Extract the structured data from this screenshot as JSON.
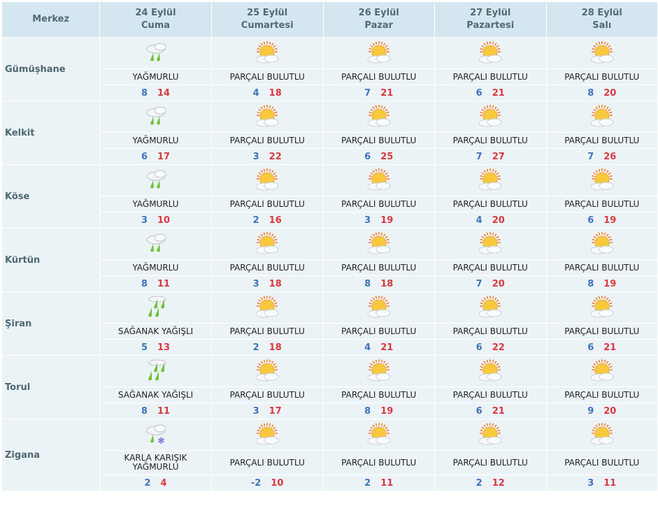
{
  "header": {
    "first": "Merkez",
    "days": [
      {
        "date": "24 Eylül",
        "weekday": "Cuma"
      },
      {
        "date": "25 Eylül",
        "weekday": "Cumartesi"
      },
      {
        "date": "26 Eylül",
        "weekday": "Pazar"
      },
      {
        "date": "27 Eylül",
        "weekday": "Pazartesi"
      },
      {
        "date": "28 Eylül",
        "weekday": "Salı"
      }
    ]
  },
  "colors": {
    "low": "#3e74ba",
    "high": "#d8393f",
    "header_bg": "#d4e7f1",
    "cell_bg": "#ecf3f7"
  },
  "rows": [
    {
      "city": "Gümüşhane",
      "days": [
        {
          "icon": "rain-icon",
          "cond": "YAĞMURLU",
          "lo": "8",
          "hi": "14"
        },
        {
          "icon": "partly-cloudy-icon",
          "cond": "PARÇALI BULUTLU",
          "lo": "4",
          "hi": "18"
        },
        {
          "icon": "partly-cloudy-icon",
          "cond": "PARÇALI BULUTLU",
          "lo": "7",
          "hi": "21"
        },
        {
          "icon": "partly-cloudy-icon",
          "cond": "PARÇALI BULUTLU",
          "lo": "6",
          "hi": "21"
        },
        {
          "icon": "partly-cloudy-icon",
          "cond": "PARÇALI BULUTLU",
          "lo": "8",
          "hi": "20"
        }
      ]
    },
    {
      "city": "Kelkit",
      "days": [
        {
          "icon": "rain-icon",
          "cond": "YAĞMURLU",
          "lo": "6",
          "hi": "17"
        },
        {
          "icon": "partly-cloudy-icon",
          "cond": "PARÇALI BULUTLU",
          "lo": "3",
          "hi": "22"
        },
        {
          "icon": "partly-cloudy-icon",
          "cond": "PARÇALI BULUTLU",
          "lo": "6",
          "hi": "25"
        },
        {
          "icon": "partly-cloudy-icon",
          "cond": "PARÇALI BULUTLU",
          "lo": "7",
          "hi": "27"
        },
        {
          "icon": "partly-cloudy-icon",
          "cond": "PARÇALI BULUTLU",
          "lo": "7",
          "hi": "26"
        }
      ]
    },
    {
      "city": "Köse",
      "days": [
        {
          "icon": "rain-icon",
          "cond": "YAĞMURLU",
          "lo": "3",
          "hi": "10"
        },
        {
          "icon": "partly-cloudy-icon",
          "cond": "PARÇALI BULUTLU",
          "lo": "2",
          "hi": "16"
        },
        {
          "icon": "partly-cloudy-icon",
          "cond": "PARÇALI BULUTLU",
          "lo": "3",
          "hi": "19"
        },
        {
          "icon": "partly-cloudy-icon",
          "cond": "PARÇALI BULUTLU",
          "lo": "4",
          "hi": "20"
        },
        {
          "icon": "partly-cloudy-icon",
          "cond": "PARÇALI BULUTLU",
          "lo": "6",
          "hi": "19"
        }
      ]
    },
    {
      "city": "Kürtün",
      "days": [
        {
          "icon": "rain-icon",
          "cond": "YAĞMURLU",
          "lo": "8",
          "hi": "11"
        },
        {
          "icon": "partly-cloudy-icon",
          "cond": "PARÇALI BULUTLU",
          "lo": "3",
          "hi": "18"
        },
        {
          "icon": "partly-cloudy-icon",
          "cond": "PARÇALI BULUTLU",
          "lo": "8",
          "hi": "18"
        },
        {
          "icon": "partly-cloudy-icon",
          "cond": "PARÇALI BULUTLU",
          "lo": "7",
          "hi": "20"
        },
        {
          "icon": "partly-cloudy-icon",
          "cond": "PARÇALI BULUTLU",
          "lo": "8",
          "hi": "19"
        }
      ]
    },
    {
      "city": "Şiran",
      "days": [
        {
          "icon": "heavy-rain-icon",
          "cond": "SAĞANAK YAĞIŞLI",
          "lo": "5",
          "hi": "13"
        },
        {
          "icon": "partly-cloudy-icon",
          "cond": "PARÇALI BULUTLU",
          "lo": "2",
          "hi": "18"
        },
        {
          "icon": "partly-cloudy-icon",
          "cond": "PARÇALI BULUTLU",
          "lo": "4",
          "hi": "21"
        },
        {
          "icon": "partly-cloudy-icon",
          "cond": "PARÇALI BULUTLU",
          "lo": "6",
          "hi": "22"
        },
        {
          "icon": "partly-cloudy-icon",
          "cond": "PARÇALI BULUTLU",
          "lo": "6",
          "hi": "21"
        }
      ]
    },
    {
      "city": "Torul",
      "days": [
        {
          "icon": "heavy-rain-icon",
          "cond": "SAĞANAK YAĞIŞLI",
          "lo": "8",
          "hi": "11"
        },
        {
          "icon": "partly-cloudy-icon",
          "cond": "PARÇALI BULUTLU",
          "lo": "3",
          "hi": "17"
        },
        {
          "icon": "partly-cloudy-icon",
          "cond": "PARÇALI BULUTLU",
          "lo": "8",
          "hi": "19"
        },
        {
          "icon": "partly-cloudy-icon",
          "cond": "PARÇALI BULUTLU",
          "lo": "6",
          "hi": "21"
        },
        {
          "icon": "partly-cloudy-icon",
          "cond": "PARÇALI BULUTLU",
          "lo": "9",
          "hi": "20"
        }
      ]
    },
    {
      "city": "Zigana",
      "days": [
        {
          "icon": "sleet-icon",
          "cond": "KARLA KARIŞIK YAĞMURLU",
          "lo": "2",
          "hi": "4"
        },
        {
          "icon": "partly-cloudy-icon",
          "cond": "PARÇALI BULUTLU",
          "lo": "-2",
          "hi": "10"
        },
        {
          "icon": "partly-cloudy-icon",
          "cond": "PARÇALI BULUTLU",
          "lo": "2",
          "hi": "11"
        },
        {
          "icon": "partly-cloudy-icon",
          "cond": "PARÇALI BULUTLU",
          "lo": "2",
          "hi": "12"
        },
        {
          "icon": "partly-cloudy-icon",
          "cond": "PARÇALI BULUTLU",
          "lo": "3",
          "hi": "11"
        }
      ]
    }
  ]
}
